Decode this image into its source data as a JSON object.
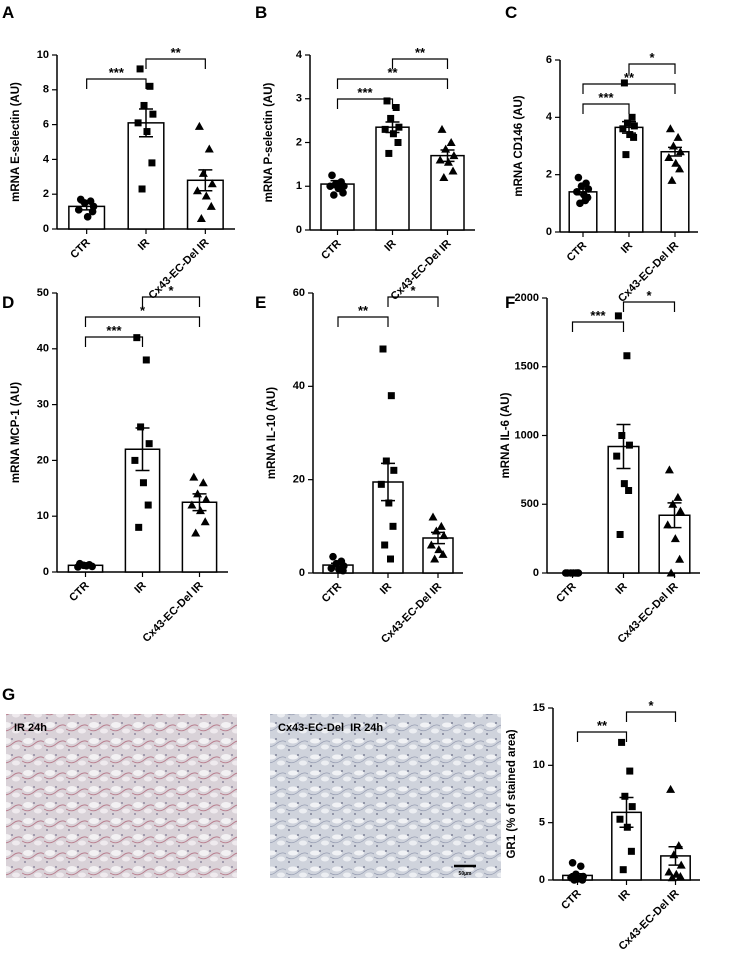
{
  "chart_data": [
    {
      "type": "bar",
      "panel": "A",
      "ylabel": "mRNA E-selectin (AU)",
      "categories": [
        "CTR",
        "IR",
        "Cx43-EC-Del IR"
      ],
      "values": [
        1.3,
        6.1,
        2.8
      ],
      "errors": [
        0.2,
        0.8,
        0.6
      ],
      "points": [
        [
          1.7,
          1.6,
          1.5,
          1.3,
          1.1,
          0.7,
          1.0
        ],
        [
          9.2,
          8.2,
          7.1,
          6.6,
          6.1,
          5.6,
          3.8,
          2.3
        ],
        [
          5.9,
          4.6,
          3.2,
          2.6,
          2.2,
          1.9,
          1.3,
          0.6
        ]
      ],
      "markers": [
        "circle",
        "square",
        "triangle"
      ],
      "ylim": [
        0,
        10
      ],
      "yticks": [
        0,
        2,
        4,
        6,
        8,
        10
      ],
      "brackets": [
        {
          "label": "**",
          "from": 1,
          "to": 2
        },
        {
          "label": "***",
          "from": 0,
          "to": 1
        }
      ]
    },
    {
      "type": "bar",
      "panel": "B",
      "ylabel": "mRNA P-selectin (AU)",
      "categories": [
        "CTR",
        "IR",
        "Cx43-EC-Del IR"
      ],
      "values": [
        1.05,
        2.35,
        1.7
      ],
      "errors": [
        0.08,
        0.12,
        0.13
      ],
      "points": [
        [
          1.25,
          1.1,
          1.05,
          1.0,
          1.0,
          0.95,
          0.85,
          0.8
        ],
        [
          2.95,
          2.8,
          2.55,
          2.35,
          2.3,
          2.2,
          2.0,
          1.75
        ],
        [
          2.3,
          2.0,
          1.85,
          1.7,
          1.6,
          1.55,
          1.35,
          1.2
        ]
      ],
      "markers": [
        "circle",
        "square",
        "triangle"
      ],
      "ylim": [
        0,
        4
      ],
      "yticks": [
        0,
        1,
        2,
        3,
        4
      ],
      "brackets": [
        {
          "label": "**",
          "from": 1,
          "to": 2
        },
        {
          "label": "**",
          "from": 0,
          "to": 2
        },
        {
          "label": "***",
          "from": 0,
          "to": 1
        }
      ]
    },
    {
      "type": "bar",
      "panel": "C",
      "ylabel": "mRNA CD146 (AU)",
      "categories": [
        "CTR",
        "IR",
        "Cx43-EC-Del IR"
      ],
      "values": [
        1.4,
        3.65,
        2.8
      ],
      "errors": [
        0.1,
        0.2,
        0.15
      ],
      "points": [
        [
          1.9,
          1.7,
          1.6,
          1.5,
          1.4,
          1.3,
          1.2,
          1.0,
          1.1
        ],
        [
          5.2,
          4.0,
          3.8,
          3.7,
          3.6,
          3.4,
          3.3,
          2.7
        ],
        [
          3.6,
          3.3,
          3.0,
          2.8,
          2.6,
          2.4,
          2.2,
          1.8
        ]
      ],
      "markers": [
        "circle",
        "square",
        "triangle"
      ],
      "ylim": [
        0,
        6
      ],
      "yticks": [
        0,
        2,
        4,
        6
      ],
      "brackets": [
        {
          "label": "*",
          "from": 1,
          "to": 2
        },
        {
          "label": "**",
          "from": 0,
          "to": 2
        },
        {
          "label": "***",
          "from": 0,
          "to": 1
        }
      ]
    },
    {
      "type": "bar",
      "panel": "D",
      "ylabel": "mRNA MCP-1 (AU)",
      "categories": [
        "CTR",
        "IR",
        "Cx43-EC-Del IR"
      ],
      "values": [
        1.2,
        22,
        12.5
      ],
      "errors": [
        0.2,
        3.8,
        1.5
      ],
      "points": [
        [
          1.5,
          1.3,
          1.2,
          1.0,
          0.9,
          1.1
        ],
        [
          42,
          38,
          26,
          23,
          20,
          16,
          12,
          8
        ],
        [
          17,
          16,
          14,
          13,
          12,
          11,
          9,
          7
        ]
      ],
      "markers": [
        "circle",
        "square",
        "triangle"
      ],
      "ylim": [
        0,
        50
      ],
      "yticks": [
        0,
        10,
        20,
        30,
        40,
        50
      ],
      "brackets": [
        {
          "label": "*",
          "from": 1,
          "to": 2
        },
        {
          "label": "*",
          "from": 0,
          "to": 2
        },
        {
          "label": "***",
          "from": 0,
          "to": 1
        }
      ]
    },
    {
      "type": "bar",
      "panel": "E",
      "ylabel": "mRNA IL-10 (AU)",
      "categories": [
        "CTR",
        "IR",
        "Cx43-EC-Del IR"
      ],
      "values": [
        1.7,
        19.5,
        7.5
      ],
      "errors": [
        0.4,
        4,
        1.2
      ],
      "points": [
        [
          3.5,
          2.5,
          2,
          1.5,
          1.0,
          0.8,
          0.5
        ],
        [
          48,
          38,
          24,
          22,
          19,
          15,
          10,
          6,
          3
        ],
        [
          12,
          10,
          9,
          8,
          6,
          5,
          4,
          3
        ]
      ],
      "markers": [
        "circle",
        "square",
        "triangle"
      ],
      "ylim": [
        0,
        60
      ],
      "yticks": [
        0,
        20,
        40,
        60
      ],
      "brackets": [
        {
          "label": "*",
          "from": 1,
          "to": 2
        },
        {
          "label": "**",
          "from": 0,
          "to": 1
        }
      ]
    },
    {
      "type": "bar",
      "panel": "F",
      "ylabel": "mRNA IL-6 (AU)",
      "categories": [
        "CTR",
        "IR",
        "Cx43-EC-Del IR"
      ],
      "values": [
        0,
        920,
        420
      ],
      "errors": [
        0,
        160,
        90
      ],
      "points": [
        [
          0,
          0,
          0,
          0,
          0,
          0,
          0
        ],
        [
          1870,
          1580,
          1000,
          930,
          850,
          650,
          600,
          280
        ],
        [
          750,
          550,
          500,
          450,
          350,
          250,
          100,
          0
        ]
      ],
      "markers": [
        "circle",
        "square",
        "triangle"
      ],
      "ylim": [
        0,
        2000
      ],
      "yticks": [
        0,
        500,
        1000,
        1500,
        2000
      ],
      "brackets": [
        {
          "label": "*",
          "from": 1,
          "to": 2
        },
        {
          "label": "***",
          "from": 0,
          "to": 1
        }
      ]
    },
    {
      "type": "bar",
      "panel": "G",
      "ylabel": "GR1 (% of stained area)",
      "categories": [
        "CTR",
        "IR",
        "Cx43-EC-Del IR"
      ],
      "values": [
        0.4,
        5.9,
        2.1
      ],
      "errors": [
        0.15,
        1.3,
        0.8
      ],
      "points": [
        [
          1.5,
          1.2,
          0.5,
          0.3,
          0.2,
          0.1,
          0.0,
          0.0
        ],
        [
          12,
          9.5,
          7.3,
          6.4,
          5.3,
          4.6,
          2.5,
          0.9
        ],
        [
          7.9,
          3.0,
          2.2,
          1.3,
          0.7,
          0.5,
          0.3,
          0.2
        ]
      ],
      "markers": [
        "circle",
        "square",
        "triangle"
      ],
      "ylim": [
        0,
        15
      ],
      "yticks": [
        0,
        5,
        10,
        15
      ],
      "brackets": [
        {
          "label": "*",
          "from": 1,
          "to": 2
        },
        {
          "label": "**",
          "from": 0,
          "to": 1
        }
      ]
    }
  ],
  "micrographs": [
    {
      "label": "IR 24h"
    },
    {
      "label": "Cx43-EC-Del  IR 24h",
      "scale_bar": "50µm"
    }
  ]
}
